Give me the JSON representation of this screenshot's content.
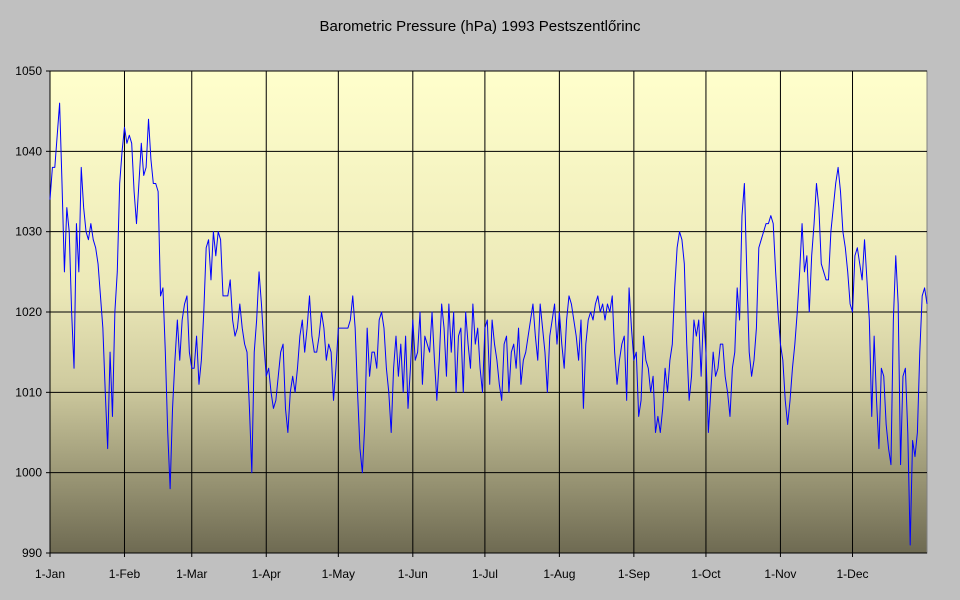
{
  "chart_data": {
    "type": "line",
    "title": "Barometric Pressure (hPa) 1993 Pestszentlőrinc",
    "xlabel": "",
    "ylabel": "",
    "ylim": [
      990,
      1050
    ],
    "yticks": [
      990,
      1000,
      1010,
      1020,
      1030,
      1040,
      1050
    ],
    "xlim": [
      1,
      366
    ],
    "xticks": [
      {
        "label": "1-Jan",
        "day": 1
      },
      {
        "label": "1-Feb",
        "day": 32
      },
      {
        "label": "1-Mar",
        "day": 60
      },
      {
        "label": "1-Apr",
        "day": 91
      },
      {
        "label": "1-May",
        "day": 121
      },
      {
        "label": "1-Jun",
        "day": 152
      },
      {
        "label": "1-Jul",
        "day": 182
      },
      {
        "label": "1-Aug",
        "day": 213
      },
      {
        "label": "1-Sep",
        "day": 244
      },
      {
        "label": "1-Oct",
        "day": 274
      },
      {
        "label": "1-Nov",
        "day": 305
      },
      {
        "label": "1-Dec",
        "day": 335
      }
    ],
    "grid": true,
    "legend": "none",
    "colors": {
      "line": "#0000ff",
      "plot_top": "#ffffcc",
      "plot_bottom": "#6e6a52",
      "gridline": "#000000",
      "background": "#c0c0c0"
    },
    "series": [
      {
        "x_unit": "day of year",
        "values": [
          1034,
          1038,
          1038,
          1042,
          1046,
          1036,
          1025,
          1033,
          1030,
          1020,
          1013,
          1031,
          1025,
          1038,
          1033,
          1030,
          1029,
          1031,
          1029,
          1028,
          1026,
          1022,
          1018,
          1010,
          1003,
          1015,
          1007,
          1020,
          1025,
          1036,
          1040,
          1043,
          1041,
          1042,
          1041,
          1035,
          1031,
          1036,
          1041,
          1037,
          1038,
          1044,
          1039,
          1036,
          1036,
          1035,
          1022,
          1023,
          1015,
          1005,
          998,
          1008,
          1014,
          1019,
          1014,
          1019,
          1021,
          1022,
          1015,
          1013,
          1013,
          1017,
          1011,
          1014,
          1020,
          1028,
          1029,
          1024,
          1030,
          1027,
          1030,
          1029,
          1022,
          1022,
          1022,
          1024,
          1019,
          1017,
          1018,
          1021,
          1018,
          1016,
          1015,
          1008,
          1000,
          1015,
          1019,
          1025,
          1021,
          1016,
          1012,
          1013,
          1010,
          1008,
          1009,
          1012,
          1015,
          1016,
          1008,
          1005,
          1010,
          1012,
          1010,
          1013,
          1017,
          1019,
          1015,
          1018,
          1022,
          1017,
          1015,
          1015,
          1017,
          1020,
          1018,
          1014,
          1016,
          1015,
          1009,
          1013,
          1018,
          1018,
          1018,
          1018,
          1018,
          1019,
          1022,
          1018,
          1010,
          1003,
          1000,
          1006,
          1018,
          1012,
          1015,
          1015,
          1013,
          1019,
          1020,
          1018,
          1013,
          1010,
          1005,
          1013,
          1017,
          1012,
          1016,
          1010,
          1017,
          1008,
          1013,
          1019,
          1014,
          1015,
          1020,
          1011,
          1017,
          1016,
          1015,
          1020,
          1014,
          1009,
          1014,
          1021,
          1018,
          1012,
          1021,
          1015,
          1020,
          1010,
          1017,
          1018,
          1010,
          1020,
          1016,
          1013,
          1021,
          1016,
          1018,
          1013,
          1010,
          1018,
          1019,
          1011,
          1019,
          1016,
          1014,
          1011,
          1009,
          1016,
          1017,
          1010,
          1015,
          1016,
          1013,
          1018,
          1011,
          1014,
          1015,
          1017,
          1019,
          1021,
          1017,
          1014,
          1021,
          1018,
          1015,
          1010,
          1017,
          1019,
          1021,
          1016,
          1020,
          1016,
          1013,
          1019,
          1022,
          1021,
          1019,
          1017,
          1014,
          1019,
          1008,
          1016,
          1019,
          1020,
          1019,
          1021,
          1022,
          1020,
          1021,
          1019,
          1021,
          1020,
          1022,
          1015,
          1011,
          1014,
          1016,
          1017,
          1009,
          1023,
          1018,
          1014,
          1015,
          1007,
          1009,
          1017,
          1014,
          1013,
          1010,
          1012,
          1005,
          1007,
          1005,
          1008,
          1013,
          1010,
          1014,
          1016,
          1023,
          1028,
          1030,
          1029,
          1026,
          1016,
          1009,
          1012,
          1019,
          1017,
          1019,
          1012,
          1020,
          1015,
          1005,
          1010,
          1015,
          1012,
          1013,
          1016,
          1016,
          1012,
          1010,
          1007,
          1013,
          1015,
          1023,
          1019,
          1032,
          1036,
          1025,
          1015,
          1012,
          1014,
          1018,
          1028,
          1029,
          1030,
          1031,
          1031,
          1032,
          1031,
          1025,
          1020,
          1016,
          1014,
          1009,
          1006,
          1009,
          1013,
          1016,
          1020,
          1025,
          1031,
          1025,
          1027,
          1020,
          1027,
          1031,
          1036,
          1033,
          1026,
          1025,
          1024,
          1024,
          1030,
          1033,
          1036,
          1038,
          1035,
          1030,
          1028,
          1025,
          1021,
          1020,
          1027,
          1028,
          1026,
          1024,
          1029,
          1024,
          1019,
          1007,
          1017,
          1009,
          1003,
          1013,
          1012,
          1006,
          1003,
          1001,
          1019,
          1027,
          1021,
          1001,
          1012,
          1013,
          1005,
          991,
          1004,
          1002,
          1005,
          1015,
          1022,
          1023,
          1021
        ]
      }
    ]
  }
}
